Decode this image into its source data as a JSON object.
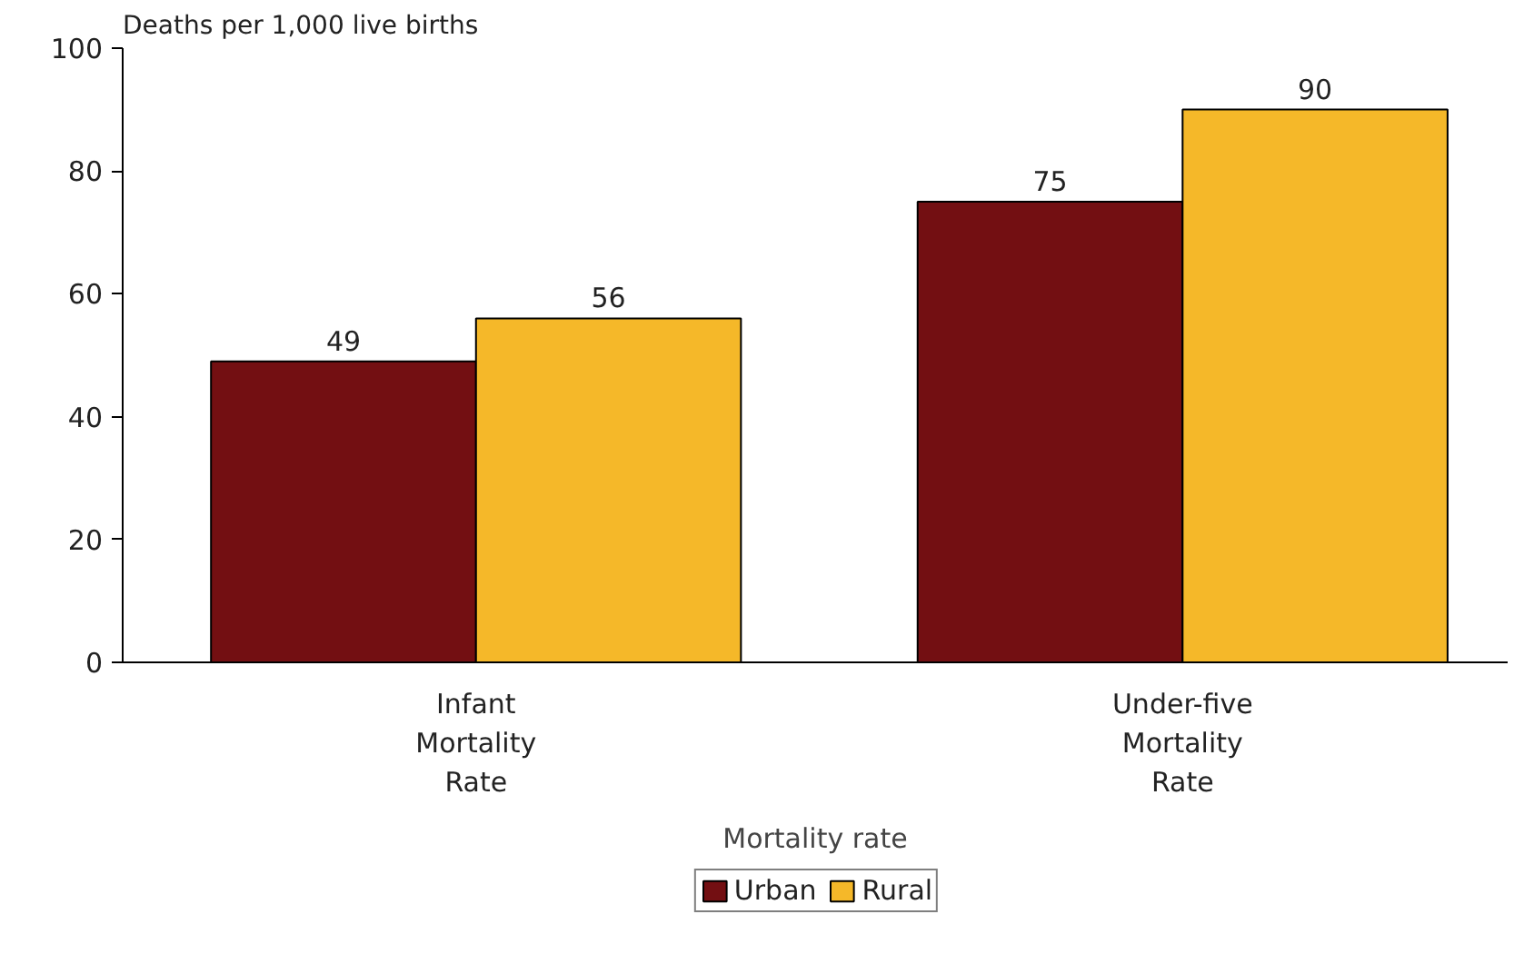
{
  "chart_data": {
    "type": "bar",
    "ylabel": "Deaths per 1,000 live births",
    "xlabel": "Mortality rate",
    "categories": [
      "Infant\nMortality\nRate",
      "Under-five\nMortality\nRate"
    ],
    "series": [
      {
        "name": "Urban",
        "color": "#730f12",
        "values": [
          49,
          75
        ]
      },
      {
        "name": "Rural",
        "color": "#f5b829",
        "values": [
          56,
          90
        ]
      }
    ],
    "ylim": [
      0,
      100
    ],
    "yticks": [
      0,
      20,
      40,
      60,
      80,
      100
    ],
    "grid": false,
    "legend": "bottom",
    "data_labels": true
  }
}
